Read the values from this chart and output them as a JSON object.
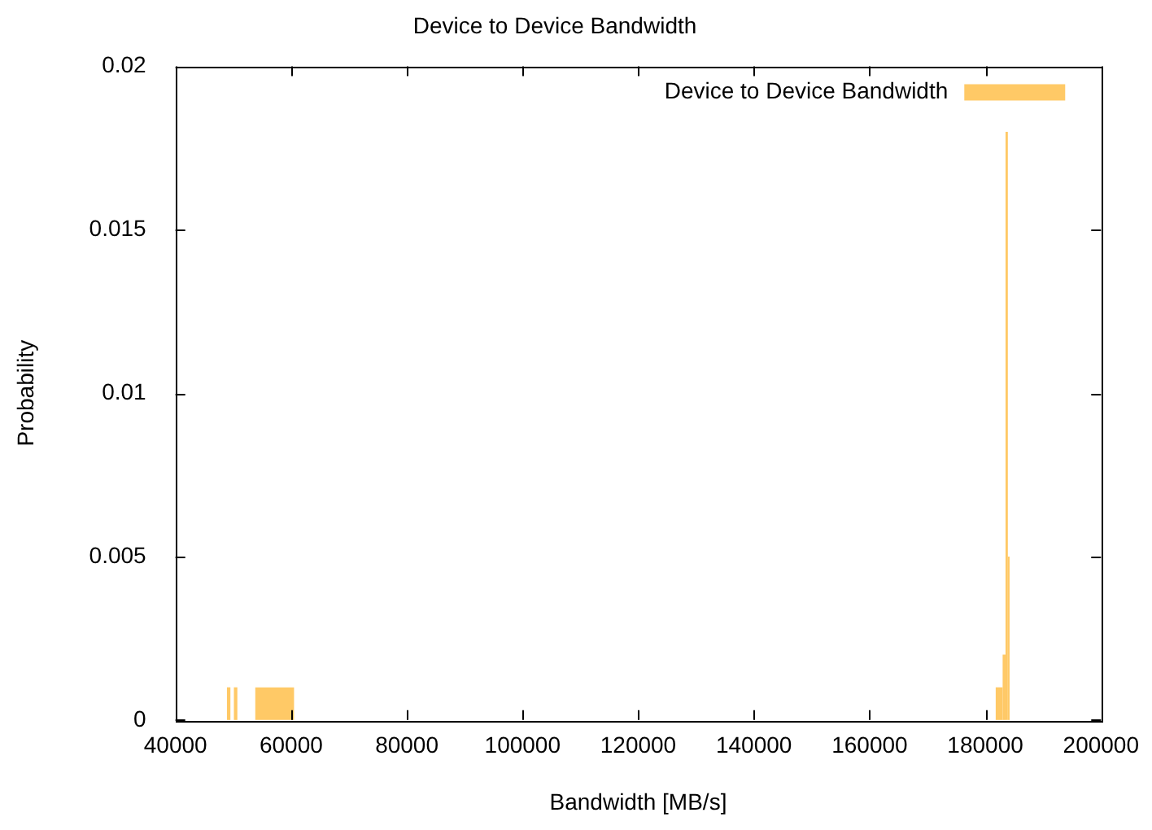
{
  "chart_data": {
    "type": "histogram",
    "title": "Device to Device Bandwidth",
    "xlabel": "Bandwidth [MB/s]",
    "ylabel": "Probability",
    "bins": [
      48900,
      49500,
      50100,
      50700,
      53800,
      60500,
      181800,
      183000,
      183500,
      183900,
      184200
    ],
    "series": [
      {
        "name": "Device to Device Bandwidth",
        "color": "#ffc966",
        "values": [
          0.001,
          0,
          0.001,
          0,
          0.001,
          0,
          0.001,
          0.002,
          0.018,
          0.005
        ]
      }
    ],
    "xlim": [
      40000,
      200000
    ],
    "xticks": [
      40000,
      60000,
      80000,
      100000,
      120000,
      140000,
      160000,
      180000,
      200000
    ],
    "ylim": [
      0,
      0.02
    ],
    "yticks": [
      0,
      0.005,
      0.01,
      0.015,
      0.02
    ],
    "grid": false,
    "legend": "top right"
  }
}
